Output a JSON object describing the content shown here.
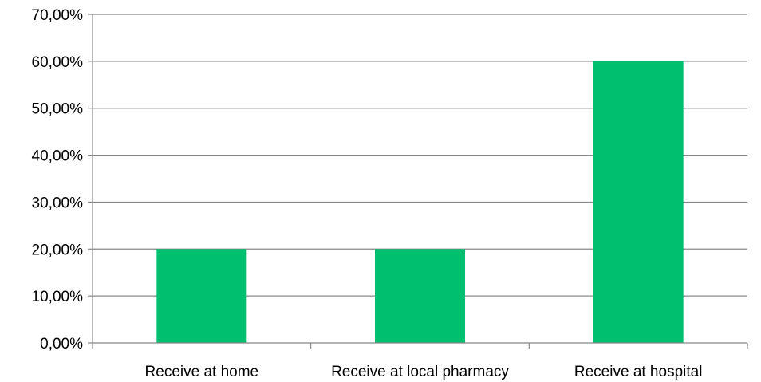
{
  "chart_data": {
    "type": "bar",
    "title": "",
    "xlabel": "",
    "ylabel": "",
    "categories": [
      "Receive at home",
      "Receive at local pharmacy",
      "Receive at hospital"
    ],
    "values": [
      20,
      20,
      60
    ],
    "ylim": [
      0,
      70
    ],
    "y_ticks": [
      0,
      10,
      20,
      30,
      40,
      50,
      60,
      70
    ],
    "y_tick_labels": [
      "0,00%",
      "10,00%",
      "20,00%",
      "30,00%",
      "40,00%",
      "50,00%",
      "60,00%",
      "70,00%"
    ],
    "grid": true,
    "legend": "none",
    "bar_color": "#00BF6F",
    "grid_color": "#888888"
  }
}
